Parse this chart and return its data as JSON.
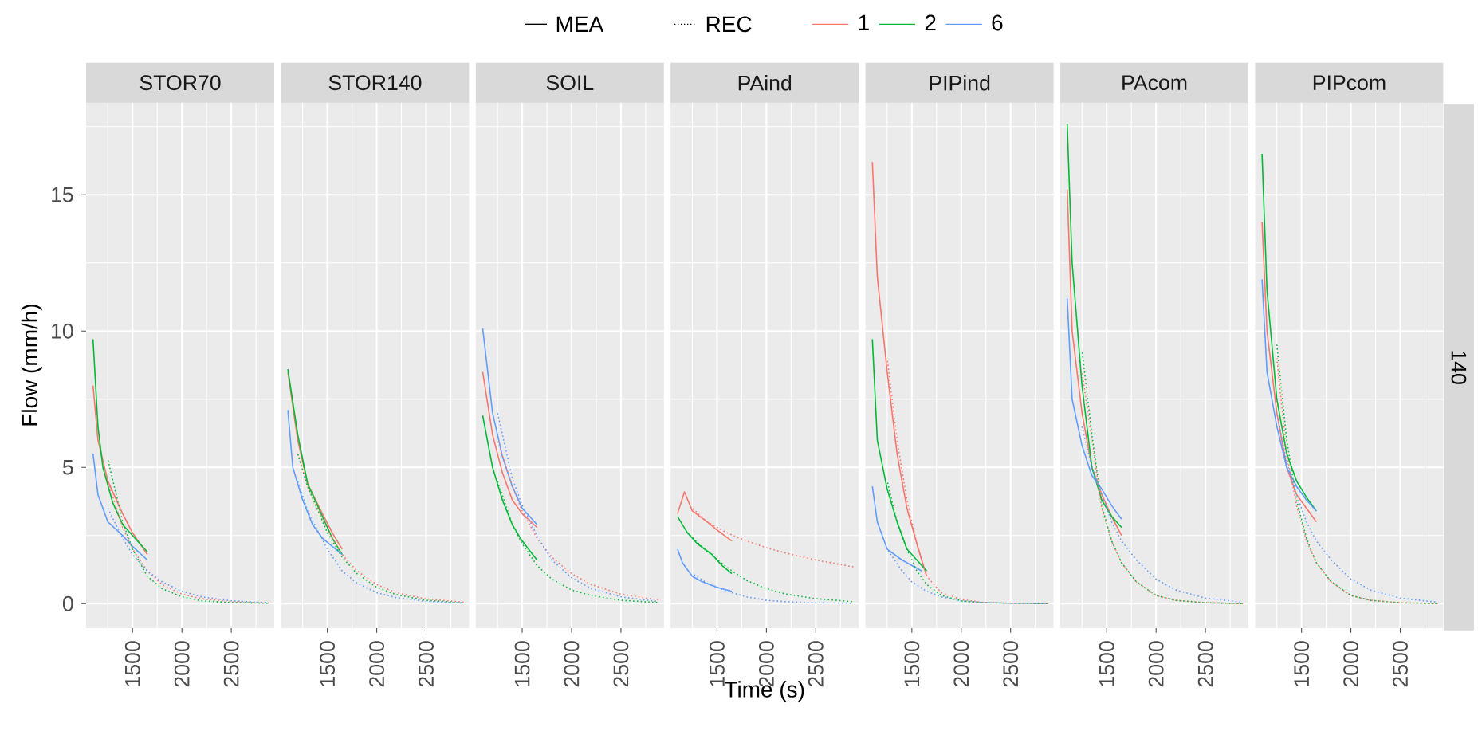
{
  "chart_data": [
    {
      "type": "line",
      "title": "STOR70",
      "ylabel": "Flow (mm/h)",
      "xlim": [
        1030,
        2935
      ],
      "ylim": [
        -0.9,
        18.4
      ],
      "xticks": [
        1500,
        2000,
        2500
      ],
      "yticks": [
        0,
        5,
        10,
        15
      ],
      "grid": true,
      "legend": "top",
      "annotations": [
        "MEA",
        "REC"
      ],
      "series": [
        {
          "name": "1",
          "color": "#f8766d",
          "line_style": "solid",
          "x": [
            1100,
            1150,
            1250,
            1400,
            1500,
            1650
          ],
          "values": [
            8.0,
            6.0,
            4.5,
            3.3,
            2.6,
            1.8
          ]
        },
        {
          "name": "2",
          "color": "#00ba38",
          "line_style": "solid",
          "x": [
            1100,
            1150,
            1200,
            1300,
            1400,
            1500,
            1650
          ],
          "values": [
            9.7,
            6.5,
            5.0,
            3.7,
            2.9,
            2.5,
            1.9
          ]
        },
        {
          "name": "6",
          "color": "#619cff",
          "line_style": "solid",
          "x": [
            1100,
            1150,
            1250,
            1400,
            1500,
            1650
          ],
          "values": [
            5.5,
            4.0,
            3.0,
            2.5,
            2.1,
            1.6
          ]
        },
        {
          "color": "#f8766d",
          "line_style": "dotted",
          "x": [
            1250,
            1400,
            1500,
            1650,
            1800,
            2000,
            2200,
            2500,
            2880
          ],
          "values": [
            4.5,
            2.8,
            2.0,
            1.2,
            0.7,
            0.35,
            0.18,
            0.07,
            0.02
          ]
        },
        {
          "color": "#00ba38",
          "line_style": "dotted",
          "x": [
            1250,
            1400,
            1500,
            1650,
            1800,
            2000,
            2200,
            2500,
            2880
          ],
          "values": [
            5.3,
            3.0,
            2.0,
            1.0,
            0.55,
            0.25,
            0.1,
            0.04,
            0.01
          ]
        },
        {
          "color": "#619cff",
          "line_style": "dotted",
          "x": [
            1250,
            1400,
            1500,
            1650,
            1800,
            2000,
            2200,
            2500,
            2880
          ],
          "values": [
            3.5,
            2.4,
            1.8,
            1.2,
            0.8,
            0.45,
            0.25,
            0.1,
            0.03
          ]
        }
      ]
    },
    {
      "type": "line",
      "title": "STOR140",
      "xlim": [
        1030,
        2935
      ],
      "ylim": [
        -0.9,
        18.4
      ],
      "xticks": [
        1500,
        2000,
        2500
      ],
      "yticks": [
        0,
        5,
        10,
        15
      ],
      "grid": true,
      "tick_labels": "x",
      "series": [
        {
          "color": "#f8766d",
          "line_style": "solid",
          "x": [
            1100,
            1200,
            1300,
            1450,
            1550,
            1650
          ],
          "values": [
            8.5,
            6.0,
            4.4,
            3.3,
            2.6,
            2.0
          ]
        },
        {
          "color": "#00ba38",
          "line_style": "solid",
          "x": [
            1100,
            1200,
            1300,
            1450,
            1550,
            1650
          ],
          "values": [
            8.6,
            6.2,
            4.4,
            3.2,
            2.4,
            1.8
          ]
        },
        {
          "color": "#619cff",
          "line_style": "solid",
          "x": [
            1100,
            1150,
            1250,
            1350,
            1450,
            1650
          ],
          "values": [
            7.1,
            5.0,
            3.8,
            2.9,
            2.4,
            1.8
          ]
        },
        {
          "color": "#f8766d",
          "line_style": "dotted",
          "x": [
            1200,
            1300,
            1500,
            1650,
            1800,
            2000,
            2200,
            2500,
            2880
          ],
          "values": [
            5.5,
            4.3,
            2.7,
            1.8,
            1.2,
            0.7,
            0.4,
            0.17,
            0.05
          ]
        },
        {
          "color": "#00ba38",
          "line_style": "dotted",
          "x": [
            1200,
            1300,
            1500,
            1650,
            1800,
            2000,
            2200,
            2500,
            2880
          ],
          "values": [
            5.5,
            4.3,
            2.6,
            1.7,
            1.1,
            0.6,
            0.33,
            0.12,
            0.03
          ]
        },
        {
          "color": "#619cff",
          "line_style": "dotted",
          "x": [
            1200,
            1300,
            1500,
            1650,
            1800,
            2000,
            2200,
            2500,
            2880
          ],
          "values": [
            4.5,
            3.4,
            2.0,
            1.2,
            0.75,
            0.4,
            0.22,
            0.08,
            0.02
          ]
        }
      ]
    },
    {
      "type": "line",
      "title": "SOIL",
      "xlim": [
        1030,
        2935
      ],
      "ylim": [
        -0.9,
        18.4
      ],
      "xticks": [
        1500,
        2000,
        2500
      ],
      "yticks": [
        0,
        5,
        10,
        15
      ],
      "grid": true,
      "tick_labels": "x",
      "series": [
        {
          "color": "#f8766d",
          "line_style": "solid",
          "x": [
            1100,
            1200,
            1300,
            1400,
            1500,
            1650
          ],
          "values": [
            8.5,
            6.2,
            4.8,
            3.8,
            3.3,
            2.8
          ]
        },
        {
          "color": "#00ba38",
          "line_style": "solid",
          "x": [
            1100,
            1200,
            1300,
            1400,
            1500,
            1650
          ],
          "values": [
            6.9,
            5.0,
            3.8,
            2.9,
            2.3,
            1.6
          ]
        },
        {
          "color": "#619cff",
          "line_style": "solid",
          "x": [
            1100,
            1200,
            1300,
            1400,
            1500,
            1650
          ],
          "values": [
            10.1,
            7.0,
            5.4,
            4.3,
            3.5,
            2.9
          ]
        },
        {
          "color": "#f8766d",
          "line_style": "dotted",
          "x": [
            1250,
            1400,
            1500,
            1650,
            1800,
            2000,
            2200,
            2500,
            2880
          ],
          "values": [
            6.0,
            4.3,
            3.4,
            2.4,
            1.7,
            1.1,
            0.7,
            0.35,
            0.13
          ]
        },
        {
          "color": "#00ba38",
          "line_style": "dotted",
          "x": [
            1250,
            1400,
            1500,
            1650,
            1800,
            2000,
            2200,
            2500,
            2880
          ],
          "values": [
            4.5,
            2.9,
            2.2,
            1.4,
            0.9,
            0.5,
            0.3,
            0.12,
            0.04
          ]
        },
        {
          "color": "#619cff",
          "line_style": "dotted",
          "x": [
            1250,
            1400,
            1500,
            1650,
            1800,
            2000,
            2200,
            2500,
            2880
          ],
          "values": [
            7.0,
            4.6,
            3.6,
            2.5,
            1.6,
            0.95,
            0.55,
            0.25,
            0.07
          ]
        }
      ]
    },
    {
      "type": "line",
      "title": "PAind",
      "xlabel": "Time (s)",
      "xlim": [
        1030,
        2935
      ],
      "ylim": [
        -0.9,
        18.4
      ],
      "xticks": [
        1500,
        2000,
        2500
      ],
      "yticks": [
        0,
        5,
        10,
        15
      ],
      "grid": true,
      "tick_labels": "x",
      "series": [
        {
          "color": "#f8766d",
          "line_style": "solid",
          "x": [
            1100,
            1170,
            1250,
            1400,
            1500,
            1650
          ],
          "values": [
            3.3,
            4.1,
            3.4,
            3.0,
            2.7,
            2.3
          ]
        },
        {
          "color": "#00ba38",
          "line_style": "solid",
          "x": [
            1100,
            1200,
            1300,
            1450,
            1550,
            1650
          ],
          "values": [
            3.2,
            2.6,
            2.2,
            1.8,
            1.4,
            1.1
          ]
        },
        {
          "color": "#619cff",
          "line_style": "solid",
          "x": [
            1100,
            1150,
            1250,
            1350,
            1500,
            1650
          ],
          "values": [
            2.0,
            1.5,
            1.0,
            0.8,
            0.6,
            0.45
          ]
        },
        {
          "color": "#f8766d",
          "line_style": "dotted",
          "x": [
            1250,
            1400,
            1600,
            1800,
            2000,
            2200,
            2500,
            2880
          ],
          "values": [
            3.5,
            3.0,
            2.6,
            2.3,
            2.05,
            1.85,
            1.6,
            1.35
          ]
        },
        {
          "color": "#00ba38",
          "line_style": "dotted",
          "x": [
            1200,
            1400,
            1650,
            1800,
            2000,
            2200,
            2500,
            2880
          ],
          "values": [
            2.6,
            1.9,
            1.2,
            0.85,
            0.55,
            0.35,
            0.18,
            0.07
          ]
        },
        {
          "color": "#619cff",
          "line_style": "dotted",
          "x": [
            1250,
            1400,
            1600,
            1800,
            2000,
            2200,
            2500,
            2880
          ],
          "values": [
            1.1,
            0.75,
            0.45,
            0.25,
            0.12,
            0.07,
            0.03,
            0.01
          ]
        }
      ]
    },
    {
      "type": "line",
      "title": "PIPind",
      "xlim": [
        1030,
        2935
      ],
      "ylim": [
        -0.9,
        18.4
      ],
      "xticks": [
        1500,
        2000,
        2500
      ],
      "yticks": [
        0,
        5,
        10,
        15
      ],
      "grid": true,
      "tick_labels": "x",
      "series": [
        {
          "color": "#f8766d",
          "line_style": "solid",
          "x": [
            1100,
            1150,
            1250,
            1350,
            1450,
            1550,
            1650
          ],
          "values": [
            16.2,
            12.0,
            8.5,
            5.5,
            3.5,
            2.2,
            1.0
          ]
        },
        {
          "color": "#00ba38",
          "line_style": "solid",
          "x": [
            1100,
            1150,
            1250,
            1350,
            1450,
            1650
          ],
          "values": [
            9.7,
            6.0,
            4.2,
            3.0,
            2.0,
            1.2
          ]
        },
        {
          "color": "#619cff",
          "line_style": "solid",
          "x": [
            1100,
            1150,
            1250,
            1400,
            1600
          ],
          "values": [
            4.3,
            3.0,
            2.0,
            1.6,
            1.2
          ]
        },
        {
          "color": "#f8766d",
          "line_style": "dotted",
          "x": [
            1250,
            1350,
            1450,
            1550,
            1650,
            1800,
            2000,
            2200,
            2500,
            2880
          ],
          "values": [
            9.0,
            6.0,
            3.8,
            2.2,
            1.0,
            0.4,
            0.15,
            0.05,
            0.01,
            0.0
          ]
        },
        {
          "color": "#00ba38",
          "line_style": "dotted",
          "x": [
            1250,
            1350,
            1450,
            1550,
            1650,
            1800,
            2000,
            2200,
            2500,
            2880
          ],
          "values": [
            4.5,
            3.0,
            2.0,
            1.2,
            0.7,
            0.3,
            0.1,
            0.04,
            0.01,
            0.0
          ]
        },
        {
          "color": "#619cff",
          "line_style": "dotted",
          "x": [
            1250,
            1400,
            1500,
            1650,
            1800,
            2000,
            2200,
            2500,
            2880
          ],
          "values": [
            2.0,
            1.2,
            0.8,
            0.45,
            0.25,
            0.1,
            0.04,
            0.01,
            0.0
          ]
        }
      ]
    },
    {
      "type": "line",
      "title": "PAcom",
      "xlim": [
        1030,
        2935
      ],
      "ylim": [
        -0.9,
        18.4
      ],
      "xticks": [
        1500,
        2000,
        2500
      ],
      "yticks": [
        0,
        5,
        10,
        15
      ],
      "grid": true,
      "tick_labels": "x",
      "series": [
        {
          "color": "#f8766d",
          "line_style": "solid",
          "x": [
            1100,
            1150,
            1250,
            1350,
            1450,
            1550,
            1650
          ],
          "values": [
            15.2,
            10.0,
            7.0,
            5.0,
            4.0,
            3.2,
            2.5
          ]
        },
        {
          "color": "#00ba38",
          "line_style": "solid",
          "x": [
            1100,
            1150,
            1250,
            1350,
            1450,
            1550,
            1650
          ],
          "values": [
            17.6,
            12.5,
            8.0,
            5.0,
            3.8,
            3.2,
            2.8
          ]
        },
        {
          "color": "#619cff",
          "line_style": "solid",
          "x": [
            1100,
            1150,
            1250,
            1350,
            1450,
            1550,
            1650
          ],
          "values": [
            11.2,
            7.5,
            5.8,
            4.7,
            4.2,
            3.6,
            3.1
          ]
        },
        {
          "color": "#f8766d",
          "line_style": "dotted",
          "x": [
            1250,
            1350,
            1450,
            1550,
            1650,
            1800,
            2000,
            2200,
            2500,
            2880
          ],
          "values": [
            8.5,
            6.0,
            3.5,
            2.3,
            1.5,
            0.8,
            0.3,
            0.12,
            0.03,
            0.0
          ]
        },
        {
          "color": "#00ba38",
          "line_style": "dotted",
          "x": [
            1250,
            1350,
            1450,
            1550,
            1650,
            1800,
            2000,
            2200,
            2500,
            2880
          ],
          "values": [
            9.3,
            6.2,
            3.6,
            2.3,
            1.5,
            0.8,
            0.3,
            0.12,
            0.03,
            0.0
          ]
        },
        {
          "color": "#619cff",
          "line_style": "dotted",
          "x": [
            1250,
            1350,
            1450,
            1550,
            1650,
            1800,
            2000,
            2200,
            2500,
            2880
          ],
          "values": [
            6.5,
            5.0,
            4.0,
            3.0,
            2.3,
            1.6,
            0.9,
            0.5,
            0.2,
            0.05
          ]
        }
      ]
    },
    {
      "type": "line",
      "title": "PIPcom",
      "xlim": [
        1030,
        2935
      ],
      "ylim": [
        -0.9,
        18.4
      ],
      "xticks": [
        1500,
        2000,
        2500
      ],
      "yticks": [
        0,
        5,
        10,
        15
      ],
      "grid": true,
      "tick_labels": "x",
      "annotations": [
        "140"
      ],
      "series": [
        {
          "color": "#f8766d",
          "line_style": "solid",
          "x": [
            1100,
            1150,
            1250,
            1350,
            1450,
            1550,
            1650
          ],
          "values": [
            14.0,
            10.0,
            7.0,
            5.0,
            4.0,
            3.5,
            3.0
          ]
        },
        {
          "color": "#00ba38",
          "line_style": "solid",
          "x": [
            1100,
            1150,
            1250,
            1350,
            1450,
            1550,
            1650
          ],
          "values": [
            16.5,
            11.5,
            7.5,
            5.5,
            4.5,
            3.9,
            3.4
          ]
        },
        {
          "color": "#619cff",
          "line_style": "solid",
          "x": [
            1100,
            1150,
            1250,
            1350,
            1450,
            1550,
            1650
          ],
          "values": [
            11.9,
            8.5,
            6.5,
            5.0,
            4.3,
            3.8,
            3.4
          ]
        },
        {
          "color": "#f8766d",
          "line_style": "dotted",
          "x": [
            1250,
            1350,
            1450,
            1550,
            1650,
            1800,
            2000,
            2200,
            2500,
            2880
          ],
          "values": [
            9.0,
            5.5,
            3.6,
            2.3,
            1.5,
            0.8,
            0.3,
            0.12,
            0.03,
            0.0
          ]
        },
        {
          "color": "#00ba38",
          "line_style": "dotted",
          "x": [
            1250,
            1350,
            1450,
            1550,
            1650,
            1800,
            2000,
            2200,
            2500,
            2880
          ],
          "values": [
            9.5,
            6.0,
            3.8,
            2.4,
            1.5,
            0.8,
            0.3,
            0.12,
            0.03,
            0.0
          ]
        },
        {
          "color": "#619cff",
          "line_style": "dotted",
          "x": [
            1250,
            1350,
            1450,
            1550,
            1650,
            1800,
            2000,
            2200,
            2500,
            2880
          ],
          "values": [
            7.0,
            5.2,
            4.0,
            3.0,
            2.3,
            1.6,
            0.9,
            0.5,
            0.2,
            0.05
          ]
        }
      ]
    }
  ]
}
